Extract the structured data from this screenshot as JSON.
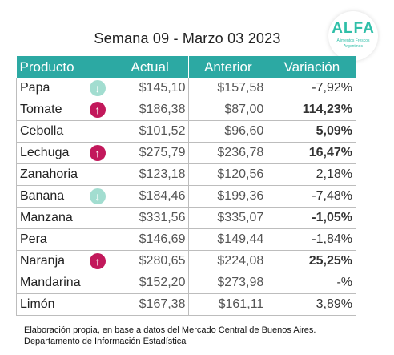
{
  "header": {
    "title": "Semana 09 - Marzo 03 2023"
  },
  "logo": {
    "name": "ALFA",
    "tagline_1": "Alimentos Frescos",
    "tagline_2": "Argentinos"
  },
  "table": {
    "columns": [
      "Producto",
      "Actual",
      "Anterior",
      "Variación"
    ],
    "rows": [
      {
        "producto": "Papa",
        "actual": "$145,10",
        "anterior": "$157,58",
        "variacion": "-7,92%",
        "arrow": "down"
      },
      {
        "producto": "Tomate",
        "actual": "$186,38",
        "anterior": "$87,00",
        "variacion": "114,23%",
        "arrow": "up"
      },
      {
        "producto": "Cebolla",
        "actual": "$101,52",
        "anterior": "$96,60",
        "variacion": "5,09%",
        "arrow": ""
      },
      {
        "producto": "Lechuga",
        "actual": "$275,79",
        "anterior": "$236,78",
        "variacion": "16,47%",
        "arrow": "up"
      },
      {
        "producto": "Zanahoria",
        "actual": "$123,18",
        "anterior": "$120,56",
        "variacion": "2,18%",
        "arrow": ""
      },
      {
        "producto": "Banana",
        "actual": "$184,46",
        "anterior": "$199,36",
        "variacion": "-7,48%",
        "arrow": "down"
      },
      {
        "producto": "Manzana",
        "actual": "$331,56",
        "anterior": "$335,07",
        "variacion": "-1,05%",
        "arrow": ""
      },
      {
        "producto": "Pera",
        "actual": "$146,69",
        "anterior": "$149,44",
        "variacion": "-1,84%",
        "arrow": ""
      },
      {
        "producto": "Naranja",
        "actual": "$280,65",
        "anterior": "$224,08",
        "variacion": "25,25%",
        "arrow": "up"
      },
      {
        "producto": "Mandarina",
        "actual": "$152,20",
        "anterior": "$273,98",
        "variacion": "-%",
        "arrow": ""
      },
      {
        "producto": "Limón",
        "actual": "$167,38",
        "anterior": "$161,11",
        "variacion": "3,89%",
        "arrow": ""
      }
    ],
    "bold_variation_rows": [
      1,
      2,
      3,
      6,
      8
    ]
  },
  "arrow_glyphs": {
    "up": "↑",
    "down": "↓"
  },
  "colors": {
    "header_bg": "#2ca9a3",
    "arrow_up": "#c2185b",
    "arrow_down": "#a2ddd0",
    "logo": "#2fbfa8"
  },
  "footer": {
    "line_1": "Elaboración propia, en base a datos del Mercado Central de Buenos Aires.",
    "line_2": "Departamento de Información Estadística"
  }
}
